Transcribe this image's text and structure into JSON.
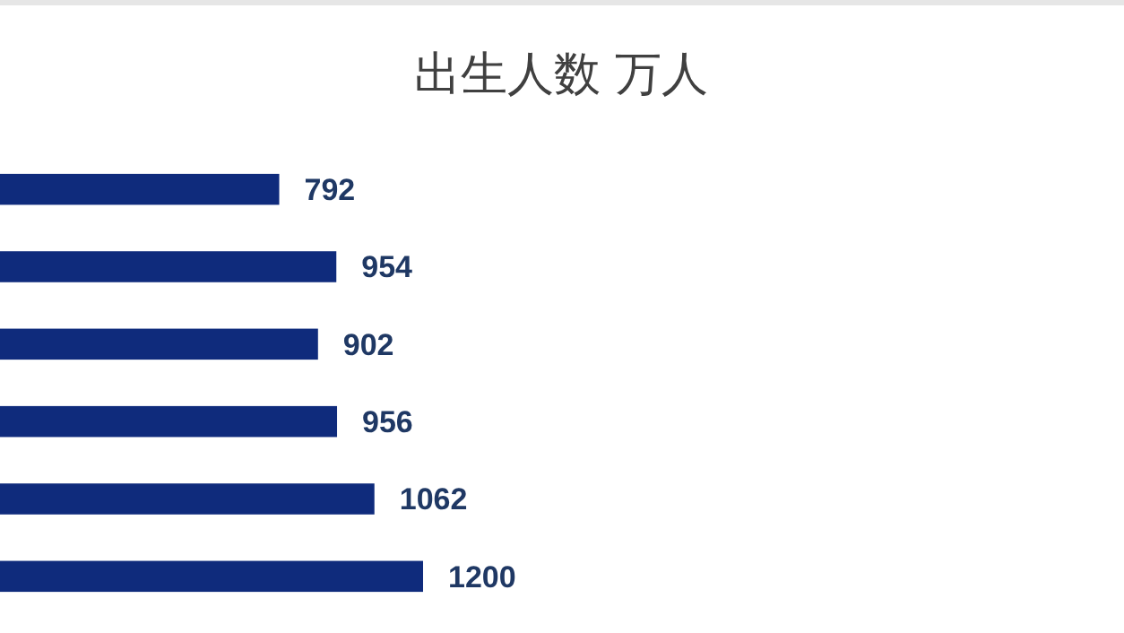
{
  "chart_data": {
    "type": "bar",
    "orientation": "horizontal",
    "title": "出生人数 万人",
    "categories": [
      null,
      null,
      null,
      null,
      null,
      null
    ],
    "values": [
      792,
      954,
      902,
      956,
      1062,
      1200
    ],
    "color": "#0f2b7c",
    "data_labels": true
  }
}
